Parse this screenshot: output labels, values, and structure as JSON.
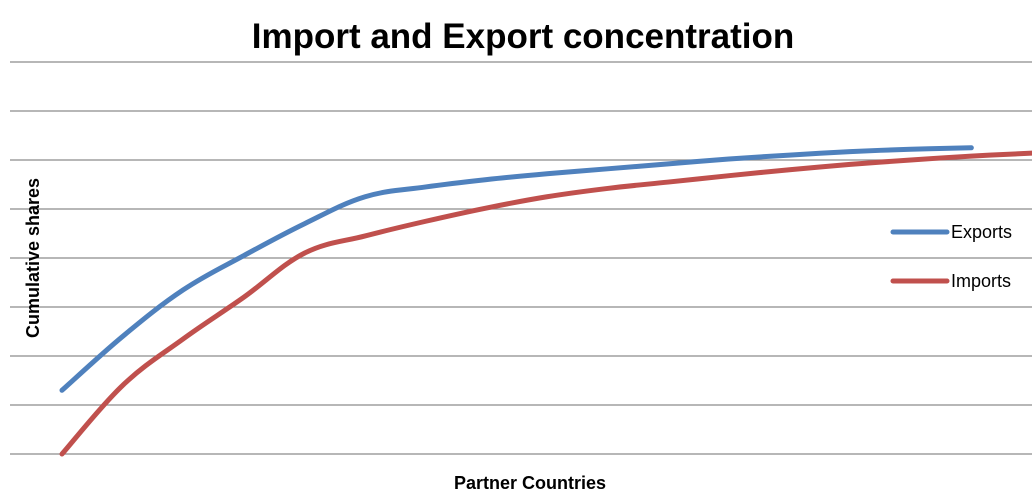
{
  "chart_data": {
    "type": "line",
    "title": "Import and Export concentration",
    "xlabel": "Partner Countries",
    "ylabel": "Cumulative shares",
    "ylim": [
      0,
      8
    ],
    "grid": true,
    "legend": "right",
    "series": [
      {
        "name": "Exports",
        "color": "#4f81bd",
        "x": [
          1,
          2,
          3,
          4,
          5,
          6,
          7,
          8,
          9,
          10,
          11,
          12,
          13,
          14,
          15,
          16
        ],
        "values": [
          1.3,
          2.4,
          3.35,
          4.05,
          4.7,
          5.25,
          5.45,
          5.6,
          5.72,
          5.82,
          5.92,
          6.02,
          6.1,
          6.17,
          6.22,
          6.25
        ]
      },
      {
        "name": "Imports",
        "color": "#c0504d",
        "x": [
          1,
          2,
          3,
          4,
          5,
          6,
          7,
          8,
          9,
          10,
          11,
          12,
          13,
          14,
          15,
          16,
          17
        ],
        "values": [
          0.0,
          1.4,
          2.35,
          3.2,
          4.1,
          4.45,
          4.75,
          5.02,
          5.25,
          5.42,
          5.55,
          5.68,
          5.8,
          5.91,
          6.0,
          6.08,
          6.14
        ]
      }
    ]
  }
}
